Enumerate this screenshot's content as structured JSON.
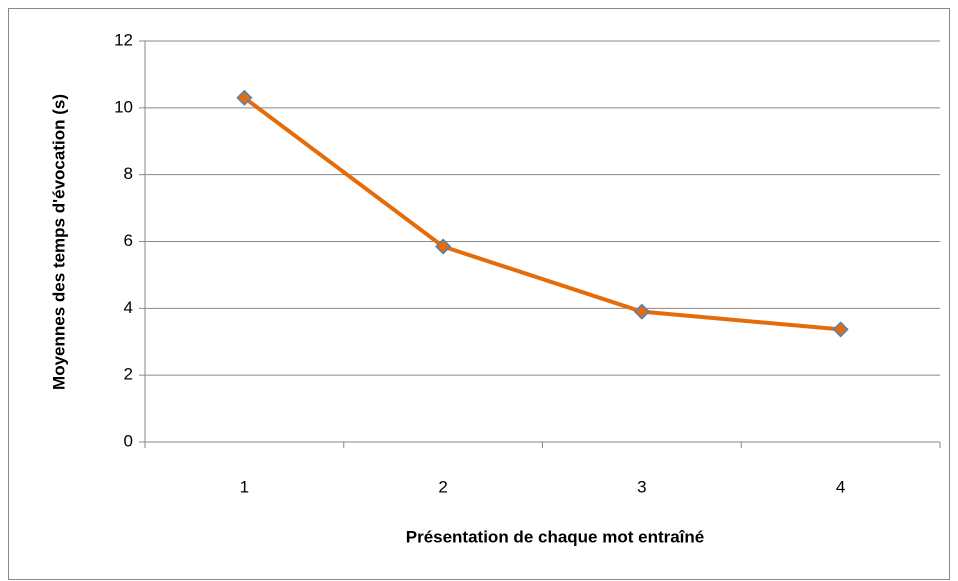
{
  "chart_data": {
    "type": "line",
    "xlabel": "Présentation de chaque mot entraîné",
    "ylabel": "Moyennes des temps d'évocation (s)",
    "categories": [
      "1",
      "2",
      "3",
      "4"
    ],
    "series": [
      {
        "color": "#e46c0a",
        "marker_edge_color": "#4f81bd",
        "values": [
          10.3,
          5.85,
          3.9,
          3.37
        ]
      }
    ],
    "ylim": [
      0,
      12
    ],
    "yticks": [
      0,
      2,
      4,
      6,
      8,
      10,
      12
    ],
    "grid": true
  }
}
